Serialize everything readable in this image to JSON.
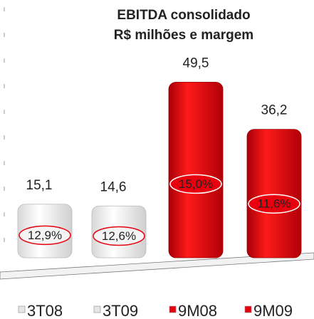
{
  "chart_data": {
    "type": "bar",
    "title": "EBITDA consolidado",
    "subtitle": "R$ milhões e margem",
    "categories": [
      "3T08",
      "3T09",
      "9M08",
      "9M09"
    ],
    "values": [
      15.1,
      14.6,
      49.5,
      36.2
    ],
    "value_labels": [
      "15,1",
      "14,6",
      "49,5",
      "36,2"
    ],
    "margins": [
      12.9,
      12.6,
      15.0,
      11.6
    ],
    "margin_labels": [
      "12,9%",
      "12,6%",
      "15,0%",
      "11,6%"
    ],
    "colors": [
      "#e6e6e6",
      "#e6e6e6",
      "#e8000f",
      "#e8000f"
    ],
    "ylim": [
      0,
      55
    ],
    "legend": "bottom"
  }
}
